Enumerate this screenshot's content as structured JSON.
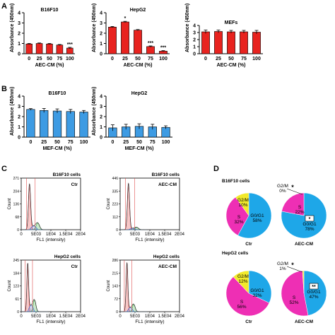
{
  "colors": {
    "red_bar": "#e8231f",
    "blue_bar": "#3d9be3",
    "pie_g0g1": "#1ea7e8",
    "pie_s": "#ee2fb4",
    "pie_g2m": "#f2ea2b",
    "hist_line": "#333333",
    "hist_red": "#e02020",
    "hist_green": "#2aa830",
    "hist_blue": "#2a60d0",
    "gate_line": "#e05050"
  },
  "panel_letters": [
    "A",
    "B",
    "C",
    "D"
  ],
  "chart_data": [
    {
      "id": "A1",
      "type": "bar",
      "panel": "A",
      "title": "B16F10",
      "categories": [
        "0",
        "25",
        "50",
        "75",
        "100"
      ],
      "values": [
        0.95,
        1.0,
        0.95,
        0.85,
        0.55
      ],
      "errors": [
        0.05,
        0.05,
        0.05,
        0.05,
        0.07
      ],
      "significance": [
        "",
        "",
        "",
        "",
        "***"
      ],
      "xlabel": "AEC-CM (%)",
      "ylabel": "Absorbance (450nm)",
      "ylim": [
        0,
        4
      ],
      "yticks": [
        0,
        1,
        2,
        3,
        4
      ],
      "color": "red"
    },
    {
      "id": "A2",
      "type": "bar",
      "panel": "A",
      "title": "HepG2",
      "categories": [
        "0",
        "25",
        "50",
        "75",
        "100"
      ],
      "values": [
        2.6,
        3.1,
        2.3,
        0.7,
        0.25
      ],
      "errors": [
        0.06,
        0.06,
        0.06,
        0.06,
        0.05
      ],
      "significance": [
        "",
        "*",
        "",
        "***",
        "***"
      ],
      "xlabel": "AEC-CM (%)",
      "ylabel": "Absorbance (450nm)",
      "ylim": [
        0,
        4
      ],
      "yticks": [
        0,
        1,
        2,
        3,
        4
      ],
      "color": "red"
    },
    {
      "id": "A3",
      "type": "bar",
      "panel": "A",
      "title": "MEFs",
      "categories": [
        "0",
        "25",
        "50",
        "75",
        "100"
      ],
      "values": [
        3.1,
        3.15,
        3.1,
        3.1,
        3.05
      ],
      "errors": [
        0.25,
        0.2,
        0.2,
        0.2,
        0.25
      ],
      "significance": [
        "",
        "",
        "",
        "",
        ""
      ],
      "xlabel": "AEC-CM (%)",
      "ylabel": "Absorbance (450nm)",
      "ylim": [
        0,
        4
      ],
      "yticks": [
        0,
        1,
        2,
        3,
        4
      ],
      "color": "red"
    },
    {
      "id": "B1",
      "type": "bar",
      "panel": "B",
      "title": "B16F10",
      "categories": [
        "0",
        "25",
        "50",
        "75",
        "100"
      ],
      "values": [
        2.7,
        2.6,
        2.55,
        2.5,
        2.45
      ],
      "errors": [
        0.08,
        0.2,
        0.2,
        0.2,
        0.15
      ],
      "significance": [
        "",
        "",
        "",
        "",
        ""
      ],
      "xlabel": "MEF-CM (%)",
      "ylabel": "Absorbance (450nm)",
      "ylim": [
        0,
        4
      ],
      "yticks": [
        0,
        1,
        2,
        3,
        4
      ],
      "color": "blue"
    },
    {
      "id": "B2",
      "type": "bar",
      "panel": "B",
      "title": "HepG2",
      "categories": [
        "0",
        "25",
        "50",
        "75",
        "100"
      ],
      "values": [
        0.9,
        1.0,
        1.05,
        1.0,
        0.95
      ],
      "errors": [
        0.3,
        0.25,
        0.25,
        0.25,
        0.15
      ],
      "significance": [
        "",
        "",
        "",
        "",
        ""
      ],
      "xlabel": "MEF-CM (%)",
      "ylabel": "Absorbance (450nm)",
      "ylim": [
        0,
        4
      ],
      "yticks": [
        0,
        1,
        2,
        3,
        4
      ],
      "color": "blue"
    },
    {
      "id": "C1",
      "type": "histogram",
      "panel": "C",
      "label": "B16F10 cells",
      "condition": "Ctr",
      "xlabel": "FL1 (intensity)",
      "ylabel": "Count",
      "yticks": [
        "0",
        "68",
        "136",
        "204",
        "271"
      ],
      "xticks": [
        "0",
        "5E03",
        "1E04",
        "1.5E04",
        "2E04"
      ],
      "g1_peak": {
        "x": 2800,
        "height": 240
      },
      "g2_peak": {
        "x": 5600,
        "height": 35
      },
      "gates": [
        1800,
        4700
      ]
    },
    {
      "id": "C2",
      "type": "histogram",
      "panel": "C",
      "label": "B16F10 cells",
      "condition": "AEC-CM",
      "xlabel": "FL1 (intensity)",
      "ylabel": "Count",
      "yticks": [
        "0",
        "112",
        "223",
        "335",
        "446"
      ],
      "xticks": [
        "0",
        "5E03",
        "1E04",
        "1.5E04",
        "2E04"
      ],
      "g1_peak": {
        "x": 2800,
        "height": 400
      },
      "g2_peak": {
        "x": 5600,
        "height": 20
      },
      "gates": [
        1800,
        4900
      ]
    },
    {
      "id": "C3",
      "type": "histogram",
      "panel": "C",
      "label": "HepG2 cells",
      "condition": "Ctr",
      "xlabel": "FL1 (intensity)",
      "ylabel": "Count",
      "yticks": [
        "0",
        "61",
        "123",
        "184",
        "245"
      ],
      "xticks": [
        "0",
        "5E03",
        "1E04",
        "1.5E04",
        "2E04"
      ],
      "g1_peak": {
        "x": 2200,
        "height": 230
      },
      "g2_peak": {
        "x": 4500,
        "height": 55
      },
      "gates": [
        1300,
        3800
      ]
    },
    {
      "id": "C4",
      "type": "histogram",
      "panel": "C",
      "label": "HepG2 cells",
      "condition": "AEC-CM",
      "xlabel": "FL1 (intensity)",
      "ylabel": "Count",
      "yticks": [
        "0",
        "72",
        "143",
        "215",
        "286"
      ],
      "xticks": [
        "0",
        "5E03",
        "1E04",
        "1.5E04",
        "2E04"
      ],
      "g1_peak": {
        "x": 2300,
        "height": 270
      },
      "g2_peak": {
        "x": 4600,
        "height": 40
      },
      "gates": [
        1400,
        3900
      ]
    },
    {
      "id": "D1",
      "type": "pie",
      "panel": "D",
      "group": "B16F10 cells",
      "condition": "Ctr",
      "slices": [
        {
          "label": "G0/G1",
          "value": 58,
          "text": "58%",
          "color": "g0g1"
        },
        {
          "label": "S",
          "value": 32,
          "text": "32%",
          "color": "s"
        },
        {
          "label": "G2/M",
          "value": 10,
          "text": "10%",
          "color": "g2m"
        }
      ]
    },
    {
      "id": "D2",
      "type": "pie",
      "panel": "D",
      "group": "B16F10 cells",
      "condition": "AEC-CM",
      "slices": [
        {
          "label": "G0/G1",
          "value": 78,
          "text": "78%",
          "color": "g0g1",
          "significance": "*"
        },
        {
          "label": "S",
          "value": 22,
          "text": "22%",
          "color": "s"
        },
        {
          "label": "G2/M",
          "value": 0,
          "text": "0%",
          "color": "g2m",
          "significance": "*"
        }
      ]
    },
    {
      "id": "D3",
      "type": "pie",
      "panel": "D",
      "group": "HepG2 cells",
      "condition": "Ctr",
      "slices": [
        {
          "label": "G0/G1",
          "value": 32,
          "text": "32%",
          "color": "g0g1"
        },
        {
          "label": "S",
          "value": 56,
          "text": "56%",
          "color": "s"
        },
        {
          "label": "G2/M",
          "value": 12,
          "text": "12%",
          "color": "g2m"
        }
      ]
    },
    {
      "id": "D4",
      "type": "pie",
      "panel": "D",
      "group": "HepG2 cells",
      "condition": "AEC-CM",
      "slices": [
        {
          "label": "G0/G1",
          "value": 47,
          "text": "47%",
          "color": "g0g1",
          "significance": "**"
        },
        {
          "label": "S",
          "value": 52,
          "text": "52%",
          "color": "s"
        },
        {
          "label": "G2/M",
          "value": 1,
          "text": "1%",
          "color": "g2m",
          "significance": "*"
        }
      ]
    }
  ]
}
